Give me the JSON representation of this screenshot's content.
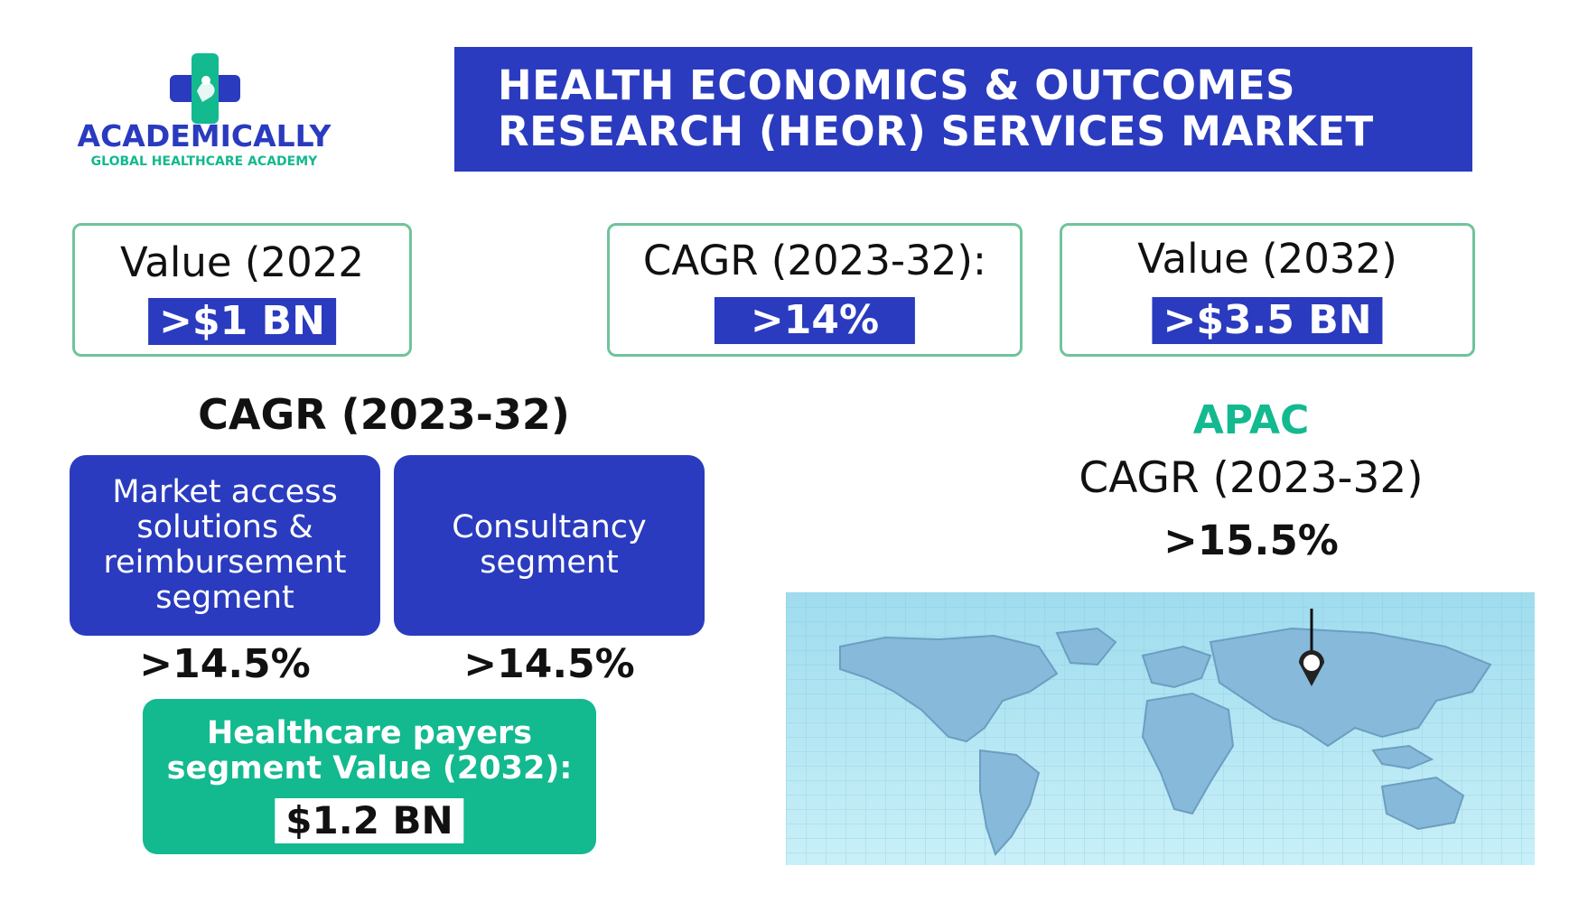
{
  "logo": {
    "name": "ACADEMICALLY",
    "tagline": "GLOBAL HEALTHCARE ACADEMY",
    "colors": {
      "primary": "#2a3bbf",
      "accent": "#13b98f"
    }
  },
  "title": {
    "line1": "HEALTH ECONOMICS & OUTCOMES",
    "line2": "RESEARCH (HEOR) SERVICES MARKET"
  },
  "stats": {
    "value_2022": {
      "label": "Value (2022",
      "value": ">$1 BN"
    },
    "cagr": {
      "label": "CAGR (2023-32):",
      "value": ">14%"
    },
    "value_2032": {
      "label": "Value (2032)",
      "value": ">$3.5 BN"
    }
  },
  "segments": {
    "heading": "CAGR (2023-32)",
    "market_access": {
      "label": "Market access solutions & reimbursement segment",
      "value": ">14.5%"
    },
    "consultancy": {
      "label": "Consultancy segment",
      "value": ">14.5%"
    }
  },
  "payers": {
    "line1": "Healthcare payers",
    "line2": "segment Value (2032):",
    "value": "$1.2 BN"
  },
  "apac": {
    "region": "APAC",
    "cagr_label": "CAGR (2023-32)",
    "value": ">15.5%"
  },
  "map": {
    "icon": "world-map-pin-icon"
  },
  "colors": {
    "blue": "#2a3bbf",
    "green": "#13b98f",
    "box_border": "#6fc49a",
    "map_bg": "#aee6f3",
    "continent": "#86b9da"
  }
}
